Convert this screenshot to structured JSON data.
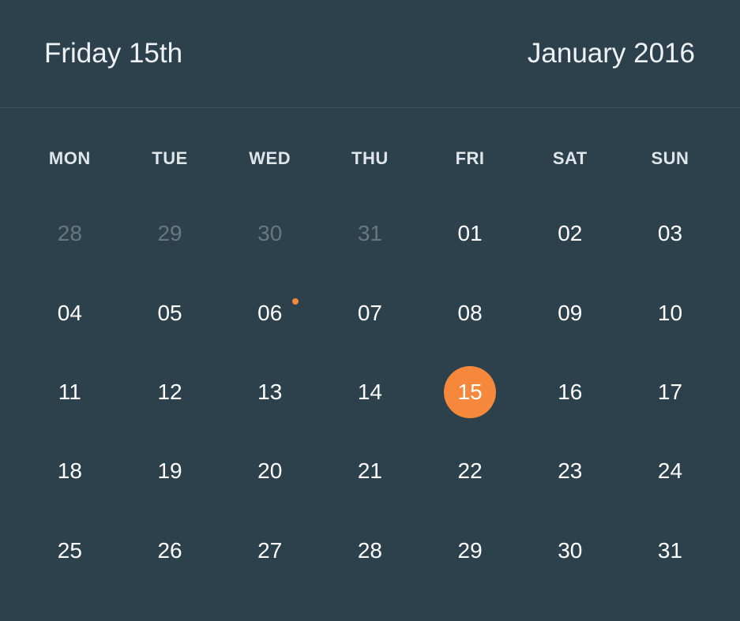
{
  "header": {
    "selected_date": "Friday 15th",
    "month_year": "January 2016"
  },
  "colors": {
    "background": "#2d414d",
    "accent": "#f5883a",
    "muted_text": "#66777f"
  },
  "weekdays": [
    "MON",
    "TUE",
    "WED",
    "THU",
    "FRI",
    "SAT",
    "SUN"
  ],
  "days": [
    {
      "label": "28",
      "muted": true
    },
    {
      "label": "29",
      "muted": true
    },
    {
      "label": "30",
      "muted": true
    },
    {
      "label": "31",
      "muted": true
    },
    {
      "label": "01"
    },
    {
      "label": "02"
    },
    {
      "label": "03"
    },
    {
      "label": "04"
    },
    {
      "label": "05"
    },
    {
      "label": "06",
      "event": true
    },
    {
      "label": "07"
    },
    {
      "label": "08"
    },
    {
      "label": "09"
    },
    {
      "label": "10"
    },
    {
      "label": "11"
    },
    {
      "label": "12"
    },
    {
      "label": "13"
    },
    {
      "label": "14"
    },
    {
      "label": "15",
      "selected": true
    },
    {
      "label": "16"
    },
    {
      "label": "17"
    },
    {
      "label": "18"
    },
    {
      "label": "19"
    },
    {
      "label": "20"
    },
    {
      "label": "21"
    },
    {
      "label": "22"
    },
    {
      "label": "23"
    },
    {
      "label": "24"
    },
    {
      "label": "25"
    },
    {
      "label": "26"
    },
    {
      "label": "27"
    },
    {
      "label": "28"
    },
    {
      "label": "29"
    },
    {
      "label": "30"
    },
    {
      "label": "31"
    }
  ]
}
